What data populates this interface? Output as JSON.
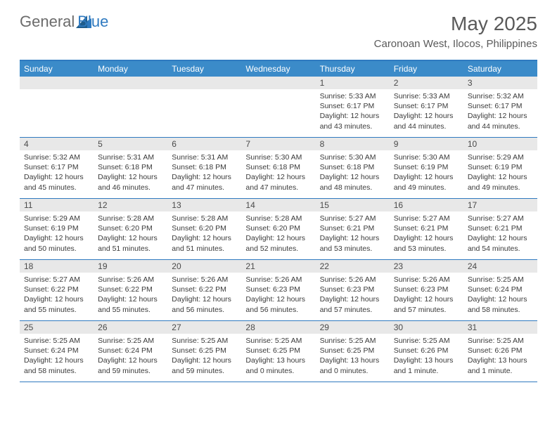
{
  "logo": {
    "general": "General",
    "blue": "Blue"
  },
  "title": "May 2025",
  "location": "Caronoan West, Ilocos, Philippines",
  "colors": {
    "header_bg": "#3b8bc9",
    "border": "#2f7ac0",
    "date_bg": "#e8e8e8",
    "text": "#3a3a3a",
    "title_text": "#5a5a5a"
  },
  "day_names": [
    "Sunday",
    "Monday",
    "Tuesday",
    "Wednesday",
    "Thursday",
    "Friday",
    "Saturday"
  ],
  "weeks": [
    [
      {
        "date": "",
        "sunrise": "",
        "sunset": "",
        "daylight": ""
      },
      {
        "date": "",
        "sunrise": "",
        "sunset": "",
        "daylight": ""
      },
      {
        "date": "",
        "sunrise": "",
        "sunset": "",
        "daylight": ""
      },
      {
        "date": "",
        "sunrise": "",
        "sunset": "",
        "daylight": ""
      },
      {
        "date": "1",
        "sunrise": "Sunrise: 5:33 AM",
        "sunset": "Sunset: 6:17 PM",
        "daylight": "Daylight: 12 hours and 43 minutes."
      },
      {
        "date": "2",
        "sunrise": "Sunrise: 5:33 AM",
        "sunset": "Sunset: 6:17 PM",
        "daylight": "Daylight: 12 hours and 44 minutes."
      },
      {
        "date": "3",
        "sunrise": "Sunrise: 5:32 AM",
        "sunset": "Sunset: 6:17 PM",
        "daylight": "Daylight: 12 hours and 44 minutes."
      }
    ],
    [
      {
        "date": "4",
        "sunrise": "Sunrise: 5:32 AM",
        "sunset": "Sunset: 6:17 PM",
        "daylight": "Daylight: 12 hours and 45 minutes."
      },
      {
        "date": "5",
        "sunrise": "Sunrise: 5:31 AM",
        "sunset": "Sunset: 6:18 PM",
        "daylight": "Daylight: 12 hours and 46 minutes."
      },
      {
        "date": "6",
        "sunrise": "Sunrise: 5:31 AM",
        "sunset": "Sunset: 6:18 PM",
        "daylight": "Daylight: 12 hours and 47 minutes."
      },
      {
        "date": "7",
        "sunrise": "Sunrise: 5:30 AM",
        "sunset": "Sunset: 6:18 PM",
        "daylight": "Daylight: 12 hours and 47 minutes."
      },
      {
        "date": "8",
        "sunrise": "Sunrise: 5:30 AM",
        "sunset": "Sunset: 6:18 PM",
        "daylight": "Daylight: 12 hours and 48 minutes."
      },
      {
        "date": "9",
        "sunrise": "Sunrise: 5:30 AM",
        "sunset": "Sunset: 6:19 PM",
        "daylight": "Daylight: 12 hours and 49 minutes."
      },
      {
        "date": "10",
        "sunrise": "Sunrise: 5:29 AM",
        "sunset": "Sunset: 6:19 PM",
        "daylight": "Daylight: 12 hours and 49 minutes."
      }
    ],
    [
      {
        "date": "11",
        "sunrise": "Sunrise: 5:29 AM",
        "sunset": "Sunset: 6:19 PM",
        "daylight": "Daylight: 12 hours and 50 minutes."
      },
      {
        "date": "12",
        "sunrise": "Sunrise: 5:28 AM",
        "sunset": "Sunset: 6:20 PM",
        "daylight": "Daylight: 12 hours and 51 minutes."
      },
      {
        "date": "13",
        "sunrise": "Sunrise: 5:28 AM",
        "sunset": "Sunset: 6:20 PM",
        "daylight": "Daylight: 12 hours and 51 minutes."
      },
      {
        "date": "14",
        "sunrise": "Sunrise: 5:28 AM",
        "sunset": "Sunset: 6:20 PM",
        "daylight": "Daylight: 12 hours and 52 minutes."
      },
      {
        "date": "15",
        "sunrise": "Sunrise: 5:27 AM",
        "sunset": "Sunset: 6:21 PM",
        "daylight": "Daylight: 12 hours and 53 minutes."
      },
      {
        "date": "16",
        "sunrise": "Sunrise: 5:27 AM",
        "sunset": "Sunset: 6:21 PM",
        "daylight": "Daylight: 12 hours and 53 minutes."
      },
      {
        "date": "17",
        "sunrise": "Sunrise: 5:27 AM",
        "sunset": "Sunset: 6:21 PM",
        "daylight": "Daylight: 12 hours and 54 minutes."
      }
    ],
    [
      {
        "date": "18",
        "sunrise": "Sunrise: 5:27 AM",
        "sunset": "Sunset: 6:22 PM",
        "daylight": "Daylight: 12 hours and 55 minutes."
      },
      {
        "date": "19",
        "sunrise": "Sunrise: 5:26 AM",
        "sunset": "Sunset: 6:22 PM",
        "daylight": "Daylight: 12 hours and 55 minutes."
      },
      {
        "date": "20",
        "sunrise": "Sunrise: 5:26 AM",
        "sunset": "Sunset: 6:22 PM",
        "daylight": "Daylight: 12 hours and 56 minutes."
      },
      {
        "date": "21",
        "sunrise": "Sunrise: 5:26 AM",
        "sunset": "Sunset: 6:23 PM",
        "daylight": "Daylight: 12 hours and 56 minutes."
      },
      {
        "date": "22",
        "sunrise": "Sunrise: 5:26 AM",
        "sunset": "Sunset: 6:23 PM",
        "daylight": "Daylight: 12 hours and 57 minutes."
      },
      {
        "date": "23",
        "sunrise": "Sunrise: 5:26 AM",
        "sunset": "Sunset: 6:23 PM",
        "daylight": "Daylight: 12 hours and 57 minutes."
      },
      {
        "date": "24",
        "sunrise": "Sunrise: 5:25 AM",
        "sunset": "Sunset: 6:24 PM",
        "daylight": "Daylight: 12 hours and 58 minutes."
      }
    ],
    [
      {
        "date": "25",
        "sunrise": "Sunrise: 5:25 AM",
        "sunset": "Sunset: 6:24 PM",
        "daylight": "Daylight: 12 hours and 58 minutes."
      },
      {
        "date": "26",
        "sunrise": "Sunrise: 5:25 AM",
        "sunset": "Sunset: 6:24 PM",
        "daylight": "Daylight: 12 hours and 59 minutes."
      },
      {
        "date": "27",
        "sunrise": "Sunrise: 5:25 AM",
        "sunset": "Sunset: 6:25 PM",
        "daylight": "Daylight: 12 hours and 59 minutes."
      },
      {
        "date": "28",
        "sunrise": "Sunrise: 5:25 AM",
        "sunset": "Sunset: 6:25 PM",
        "daylight": "Daylight: 13 hours and 0 minutes."
      },
      {
        "date": "29",
        "sunrise": "Sunrise: 5:25 AM",
        "sunset": "Sunset: 6:25 PM",
        "daylight": "Daylight: 13 hours and 0 minutes."
      },
      {
        "date": "30",
        "sunrise": "Sunrise: 5:25 AM",
        "sunset": "Sunset: 6:26 PM",
        "daylight": "Daylight: 13 hours and 1 minute."
      },
      {
        "date": "31",
        "sunrise": "Sunrise: 5:25 AM",
        "sunset": "Sunset: 6:26 PM",
        "daylight": "Daylight: 13 hours and 1 minute."
      }
    ]
  ]
}
